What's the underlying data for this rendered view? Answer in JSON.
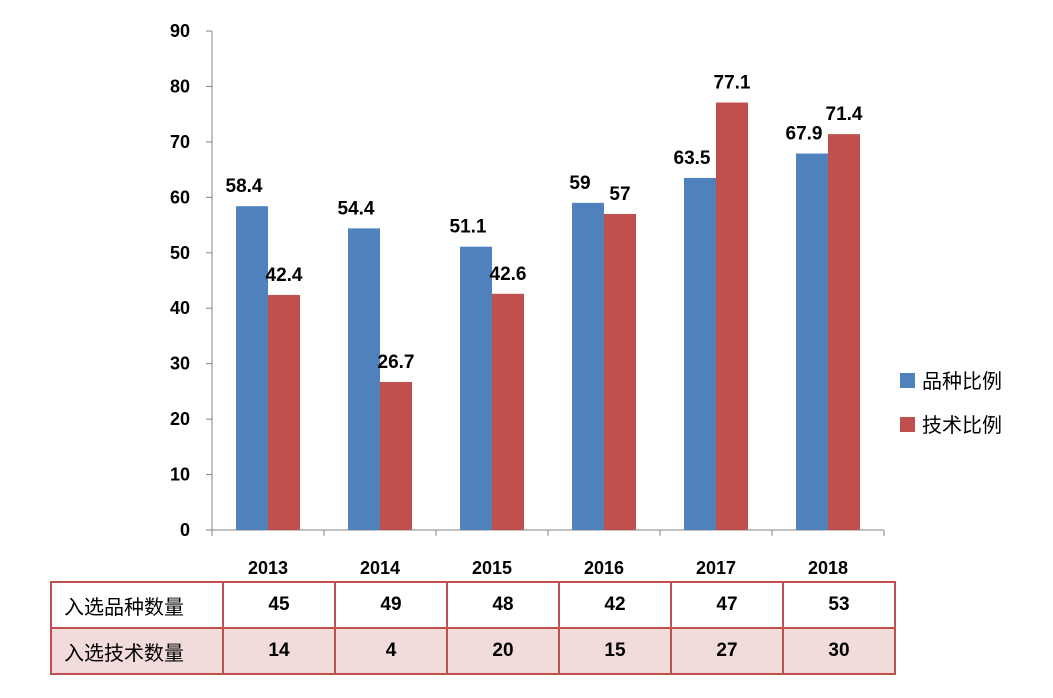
{
  "chart_data": {
    "type": "bar",
    "categories": [
      "2013",
      "2014",
      "2015",
      "2016",
      "2017",
      "2018"
    ],
    "series": [
      {
        "name": "品种比例",
        "color": "#4f81bd",
        "values": [
          58.4,
          54.4,
          51.1,
          59,
          63.5,
          67.9
        ]
      },
      {
        "name": "技术比例",
        "color": "#c0504d",
        "values": [
          42.4,
          26.7,
          42.6,
          57,
          77.1,
          71.4
        ]
      }
    ],
    "data_labels": {
      "品种比例": [
        "58.4",
        "54.4",
        "51.1",
        "59",
        "63.5",
        "67.9"
      ],
      "技术比例": [
        "42.4",
        "26.7",
        "42.6",
        "57",
        "77.1",
        "71.4"
      ]
    },
    "ylim": [
      0,
      90
    ],
    "yticks": [
      0,
      10,
      20,
      30,
      40,
      50,
      60,
      70,
      80,
      90
    ],
    "grid": false,
    "legend_position": "right"
  },
  "table": {
    "rows": [
      {
        "label": "入选品种数量",
        "values": [
          "45",
          "49",
          "48",
          "42",
          "47",
          "53"
        ]
      },
      {
        "label": "入选技术数量",
        "values": [
          "14",
          "4",
          "20",
          "15",
          "27",
          "30"
        ]
      }
    ]
  }
}
